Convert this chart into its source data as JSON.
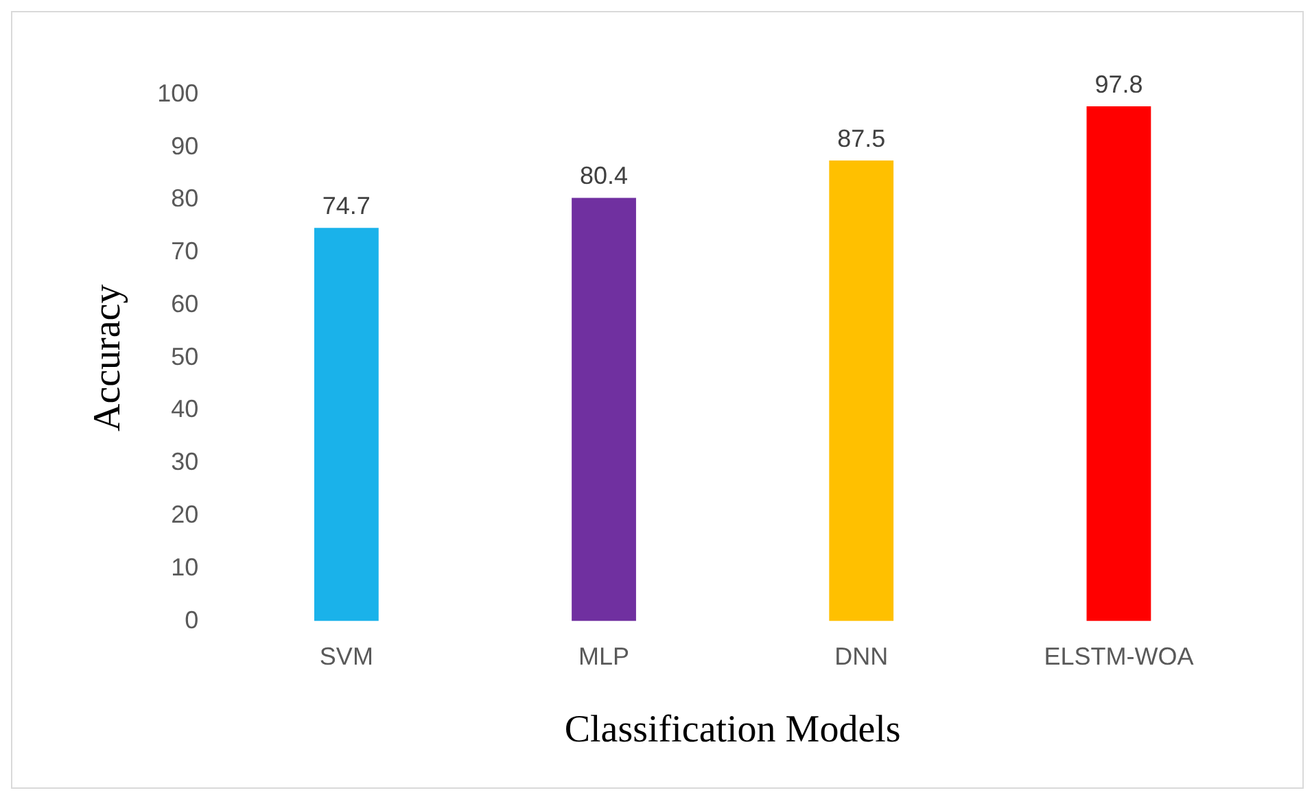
{
  "chart_data": {
    "type": "bar",
    "xlabel": "Classification Models",
    "ylabel": "Accuracy",
    "categories": [
      "SVM",
      "MLP",
      "DNN",
      "ELSTM-WOA"
    ],
    "values": [
      74.7,
      80.4,
      87.5,
      97.8
    ],
    "colors": [
      "#1ab2ea",
      "#7030a0",
      "#ffc000",
      "#ff0000"
    ],
    "ylim": [
      0,
      100
    ],
    "yticks": [
      0,
      10,
      20,
      30,
      40,
      50,
      60,
      70,
      80,
      90,
      100
    ],
    "grid": false,
    "legend": false,
    "data_labels": true
  }
}
